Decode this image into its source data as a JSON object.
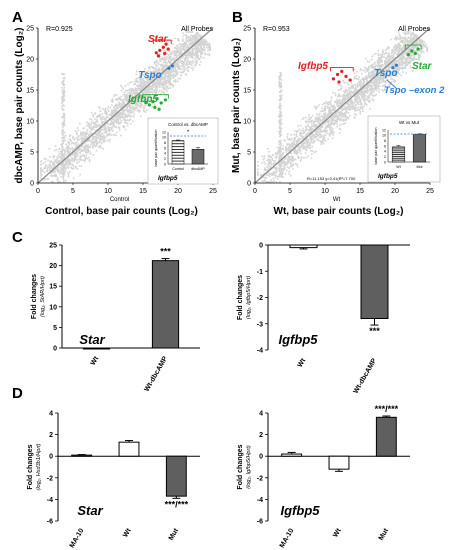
{
  "panel_letters": [
    "A",
    "B",
    "C",
    "D"
  ],
  "colors": {
    "scatter_point": "#d4d4d4",
    "diagonal": "#8a8a8a",
    "star_highlight": "#e02020",
    "tspo_highlight": "#2a7fd4",
    "igfbp5_highlight": "#22aa33",
    "bar_dark": "#5f5f5f",
    "bar_white": "#ffffff",
    "inset_stripe": "#333333",
    "inset_dash": "#2a7fd4"
  },
  "chart_data": [
    {
      "panel": "A",
      "type": "scatter",
      "corner_left": "R=0.925",
      "corner_right": "All Probes",
      "xlabel": "Control, base pair counts (Log₂)",
      "xlabel_small": "Control",
      "ylabel": "dbcAMP, base pair counts (Log₂)",
      "xlim": [
        0,
        25
      ],
      "ylim": [
        0,
        25
      ],
      "xticks": [
        0,
        5,
        10,
        15,
        20,
        25
      ],
      "yticks": [
        0,
        5,
        10,
        15,
        20,
        25
      ],
      "diagonal": true,
      "highlights": [
        {
          "label": "Star",
          "color": "#e02020",
          "points": [
            [
              16.9,
              21.0
            ],
            [
              17.4,
              21.4
            ],
            [
              17.9,
              21.9
            ],
            [
              18.3,
              22.4
            ],
            [
              17.2,
              20.5
            ],
            [
              18.6,
              21.6
            ],
            [
              18.1,
              20.9
            ]
          ]
        },
        {
          "label": "Tspo",
          "color": "#2a7fd4",
          "points": [
            [
              18.7,
              18.5
            ],
            [
              19.2,
              18.9
            ]
          ]
        },
        {
          "label": "Igfbp5",
          "color": "#22aa33",
          "points": [
            [
              15.9,
              12.6
            ],
            [
              16.4,
              13.1
            ],
            [
              17.0,
              13.6
            ],
            [
              17.6,
              12.9
            ],
            [
              18.2,
              13.4
            ],
            [
              16.7,
              12.2
            ],
            [
              15.4,
              13.0
            ],
            [
              17.3,
              11.9
            ]
          ]
        }
      ],
      "inset": {
        "title": "Control vs. dbcAMP",
        "ylabel": "base pair quantification",
        "categories": [
          "Control",
          "dbcAMP"
        ],
        "values": [
          8.7,
          5.5
        ],
        "errors": [
          0.3,
          0.6
        ],
        "ylim": [
          0,
          12
        ],
        "yticks": [
          0,
          2,
          4,
          6,
          8,
          10,
          12
        ],
        "sig": "*",
        "gene": "Igfbp5"
      }
    },
    {
      "panel": "B",
      "type": "scatter",
      "corner_left": "R=0.953",
      "corner_right": "All Probes",
      "xlabel": "Wt, base pair counts (Log₂)",
      "xlabel_small": "Wt",
      "ylabel": "Mut, base pair counts (Log₂)",
      "xlim": [
        0,
        25
      ],
      "ylim": [
        0,
        25
      ],
      "xticks": [
        0,
        5,
        10,
        15,
        20,
        25
      ],
      "yticks": [
        0,
        5,
        10,
        15,
        20,
        25
      ],
      "diagonal": true,
      "fit_text": "R=11.153 y=0.41(R²=7.700",
      "highlights": [
        {
          "label": "Igfbp5",
          "color": "#e02020",
          "points": [
            [
              11.2,
              16.8
            ],
            [
              11.8,
              17.5
            ],
            [
              12.4,
              18.0
            ],
            [
              13.0,
              17.2
            ],
            [
              13.6,
              16.6
            ],
            [
              12.0,
              16.3
            ]
          ]
        },
        {
          "label": "Tspo",
          "color": "#2a7fd4",
          "points": [
            [
              19.7,
              18.6
            ],
            [
              20.2,
              19.0
            ]
          ]
        },
        {
          "label": "Star",
          "color": "#22aa33",
          "points": [
            [
              21.9,
              20.7
            ],
            [
              22.4,
              21.3
            ],
            [
              22.9,
              20.9
            ],
            [
              23.3,
              21.6
            ]
          ]
        }
      ],
      "extra_label": "Tspo –exon 2",
      "inset": {
        "title": "Wt vs Mut",
        "ylabel": "base pair quantification",
        "categories": [
          "Wt",
          "Mut"
        ],
        "values": [
          5.6,
          10.3
        ],
        "errors": [
          0.5,
          0.3
        ],
        "ylim": [
          0,
          12
        ],
        "yticks": [
          0,
          2,
          4,
          6,
          8,
          10,
          12
        ],
        "sig": "",
        "gene": "Igfbp5"
      }
    },
    {
      "panel": "C-left",
      "type": "bar",
      "gene": "Star",
      "ylabel": "Fold changes",
      "ylabel_sub": "(log₂, StAR/Hprt)",
      "categories": [
        "Wt",
        "Wt-dbcAMP"
      ],
      "values": [
        0.0,
        21.2
      ],
      "errors": [
        0.0,
        0.5
      ],
      "fills": [
        "#ffffff",
        "#5f5f5f"
      ],
      "ylim": [
        0,
        25
      ],
      "yticks": [
        0,
        5,
        10,
        15,
        20,
        25
      ],
      "sig": [
        "",
        "***"
      ]
    },
    {
      "panel": "C-right",
      "type": "bar",
      "gene": "Igfbp5",
      "ylabel": "Fold changes",
      "ylabel_sub": "(log₂, Igfbp5/Hprt)",
      "categories": [
        "Wt",
        "Wt-dbcAMP"
      ],
      "values": [
        -0.1,
        -2.8
      ],
      "errors": [
        0.05,
        0.25
      ],
      "fills": [
        "#ffffff",
        "#5f5f5f"
      ],
      "ylim": [
        -4,
        0
      ],
      "yticks": [
        -4,
        -3,
        -2,
        -1,
        0
      ],
      "sig": [
        "",
        "***"
      ]
    },
    {
      "panel": "D-left",
      "type": "bar",
      "gene": "Star",
      "ylabel": "Fold changes",
      "ylabel_sub": "(log₂, Hsd3b1/Hprt)",
      "categories": [
        "MA-10",
        "Wt",
        "Mut"
      ],
      "values": [
        0.1,
        1.3,
        -3.7
      ],
      "errors": [
        0.05,
        0.15,
        0.2
      ],
      "fills": [
        "#ffffff",
        "#ffffff",
        "#5f5f5f"
      ],
      "ylim": [
        -6,
        4
      ],
      "yticks": [
        -6,
        -4,
        -2,
        0,
        2,
        4
      ],
      "sig": [
        "",
        "",
        "***/***"
      ]
    },
    {
      "panel": "D-right",
      "type": "bar",
      "gene": "Igfbp5",
      "ylabel": "Fold changes",
      "ylabel_sub": "(log₂, Igfbp5/Hprt)",
      "categories": [
        "MA-10",
        "Wt",
        "Mut"
      ],
      "values": [
        0.2,
        -1.2,
        3.6
      ],
      "errors": [
        0.15,
        0.2,
        0.12
      ],
      "fills": [
        "#ffffff",
        "#ffffff",
        "#5f5f5f"
      ],
      "ylim": [
        -6,
        4
      ],
      "yticks": [
        -6,
        -4,
        -2,
        0,
        2,
        4
      ],
      "sig": [
        "",
        "",
        "***/***"
      ]
    }
  ]
}
